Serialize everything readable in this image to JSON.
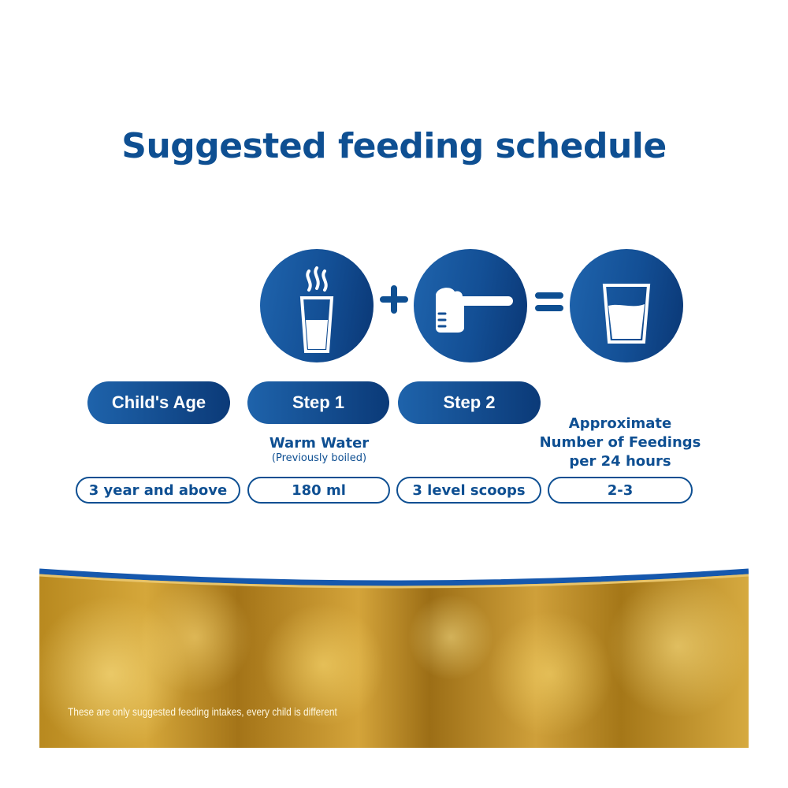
{
  "title": "Suggested feeding schedule",
  "icons": [
    "warm-water-glass-icon",
    "plus-icon",
    "scoop-icon",
    "equals-icon",
    "milk-glass-icon"
  ],
  "headers": {
    "age": "Child's Age",
    "step1": "Step 1",
    "step2": "Step 2",
    "feedings": [
      "Approximate",
      "Number of Feedings",
      "per 24 hours"
    ]
  },
  "step1_note": {
    "main": "Warm Water",
    "sub": "(Previously boiled)"
  },
  "values": {
    "age": "3 year and above",
    "water": "180 ml",
    "scoops": "3 level scoops",
    "feedings": "2-3"
  },
  "disclaimer": "These are only suggested feeding intakes, every child is different",
  "colors": {
    "brand_blue": "#0e4f92",
    "gold": "#c99a30"
  }
}
